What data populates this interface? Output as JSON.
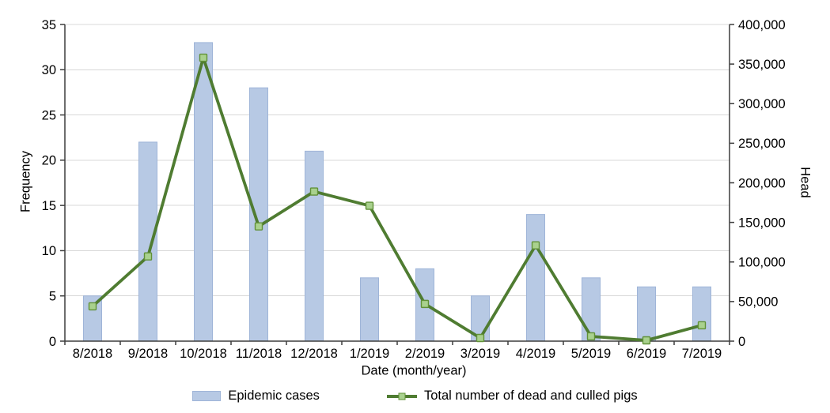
{
  "chart_data": {
    "type": "combo-bar-line",
    "categories": [
      "8/2018",
      "9/2018",
      "10/2018",
      "11/2018",
      "12/2018",
      "1/2019",
      "2/2019",
      "3/2019",
      "4/2019",
      "5/2019",
      "6/2019",
      "7/2019"
    ],
    "series": [
      {
        "name": "Epidemic cases",
        "type": "bar",
        "axis": "left",
        "values": [
          5,
          22,
          33,
          28,
          21,
          7,
          8,
          5,
          14,
          7,
          6,
          6
        ]
      },
      {
        "name": "Total number of dead and culled pigs",
        "type": "line",
        "axis": "right",
        "values": [
          44000,
          107000,
          358000,
          145000,
          189000,
          171000,
          47000,
          4000,
          121000,
          6000,
          1000,
          20000
        ]
      }
    ],
    "left_axis": {
      "label": "Frequency",
      "min": 0,
      "max": 35,
      "tick_step": 5,
      "ticks": [
        0,
        5,
        10,
        15,
        20,
        25,
        30,
        35
      ],
      "tick_labels": [
        "0",
        "5",
        "10",
        "15",
        "20",
        "25",
        "30",
        "35"
      ]
    },
    "right_axis": {
      "label": "Head",
      "min": 0,
      "max": 400000,
      "tick_step": 50000,
      "ticks": [
        0,
        50000,
        100000,
        150000,
        200000,
        250000,
        300000,
        350000,
        400000
      ],
      "tick_labels": [
        "0",
        "50,000",
        "100,000",
        "150,000",
        "200,000",
        "250,000",
        "300,000",
        "350,000",
        "400,000"
      ]
    },
    "x_axis": {
      "label": "Date (month/year)"
    },
    "grid": "horizontal",
    "legend_position": "bottom"
  },
  "colors": {
    "background": "#ffffff",
    "bar_fill": "#b7c9e4",
    "bar_border": "#9fb5d8",
    "line": "#4f7c31",
    "marker_fill": "#a9d18e",
    "marker_border": "#619138",
    "gridline": "#d8d8d8",
    "axis": "#3d3d3d",
    "text": "#000000"
  }
}
